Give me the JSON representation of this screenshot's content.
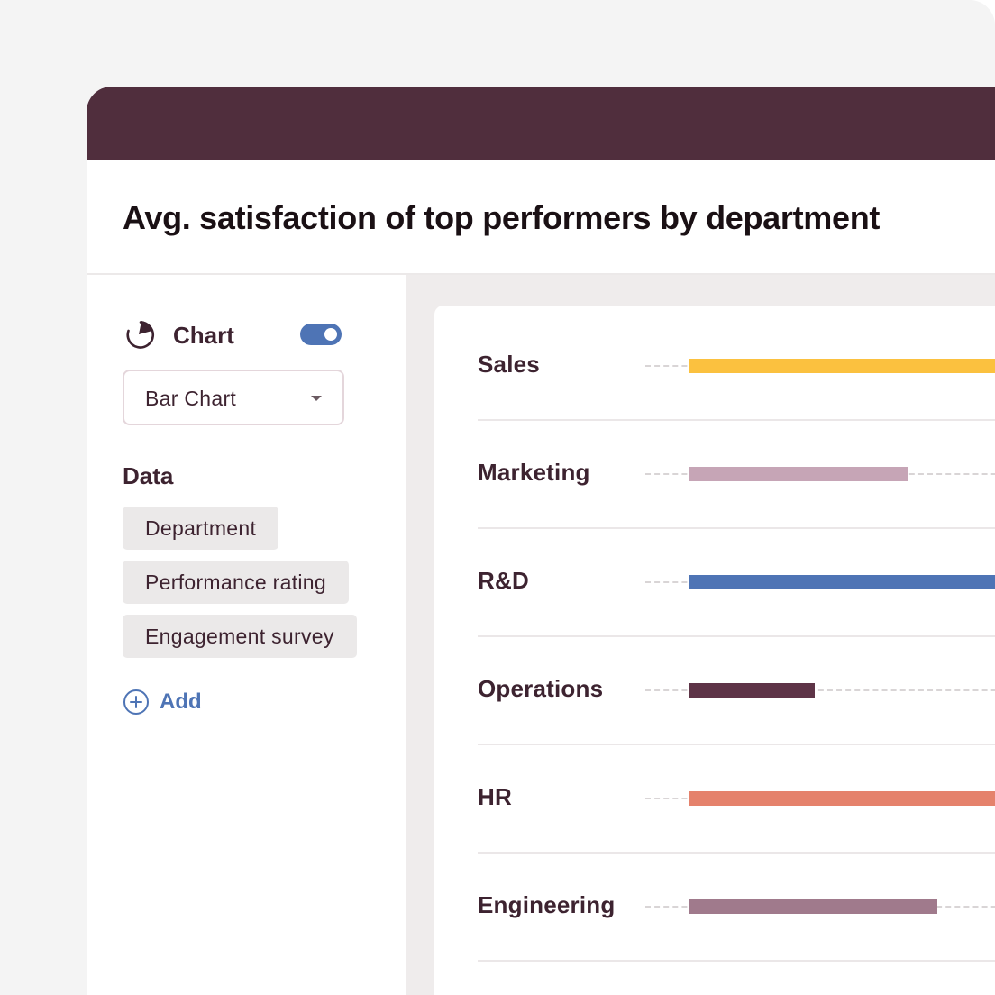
{
  "header": {
    "title": "Avg. satisfaction of top performers by department"
  },
  "sidebar": {
    "chart_section": {
      "label": "Chart",
      "icon": "pie-chart-icon",
      "toggle_on": true,
      "toggle_color": "#4e74b5"
    },
    "chart_type_select": {
      "value": "Bar Chart"
    },
    "data_section": {
      "heading": "Data",
      "chips": [
        "Department",
        "Performance rating",
        "Engagement survey"
      ],
      "add_label": "Add",
      "add_icon": "plus-circle-icon"
    }
  },
  "colors": {
    "header_bar": "#502e3d",
    "accent": "#4e74b5"
  },
  "chart_data": {
    "type": "bar",
    "orientation": "horizontal",
    "title": "Avg. satisfaction of top performers by department",
    "categories": [
      "Sales",
      "Marketing",
      "R&D",
      "Operations",
      "HR",
      "Engineering"
    ],
    "values": [
      0.95,
      0.54,
      0.9,
      0.31,
      0.82,
      0.61
    ],
    "colors": [
      "#fbc13f",
      "#c6a5b6",
      "#4e74b5",
      "#5e3447",
      "#e5826c",
      "#a07a8c"
    ],
    "value_scale": "fraction of full visible axis (axis extends beyond the cropped view)",
    "xlabel": "",
    "ylabel": "",
    "grid": false,
    "legend": "none"
  }
}
